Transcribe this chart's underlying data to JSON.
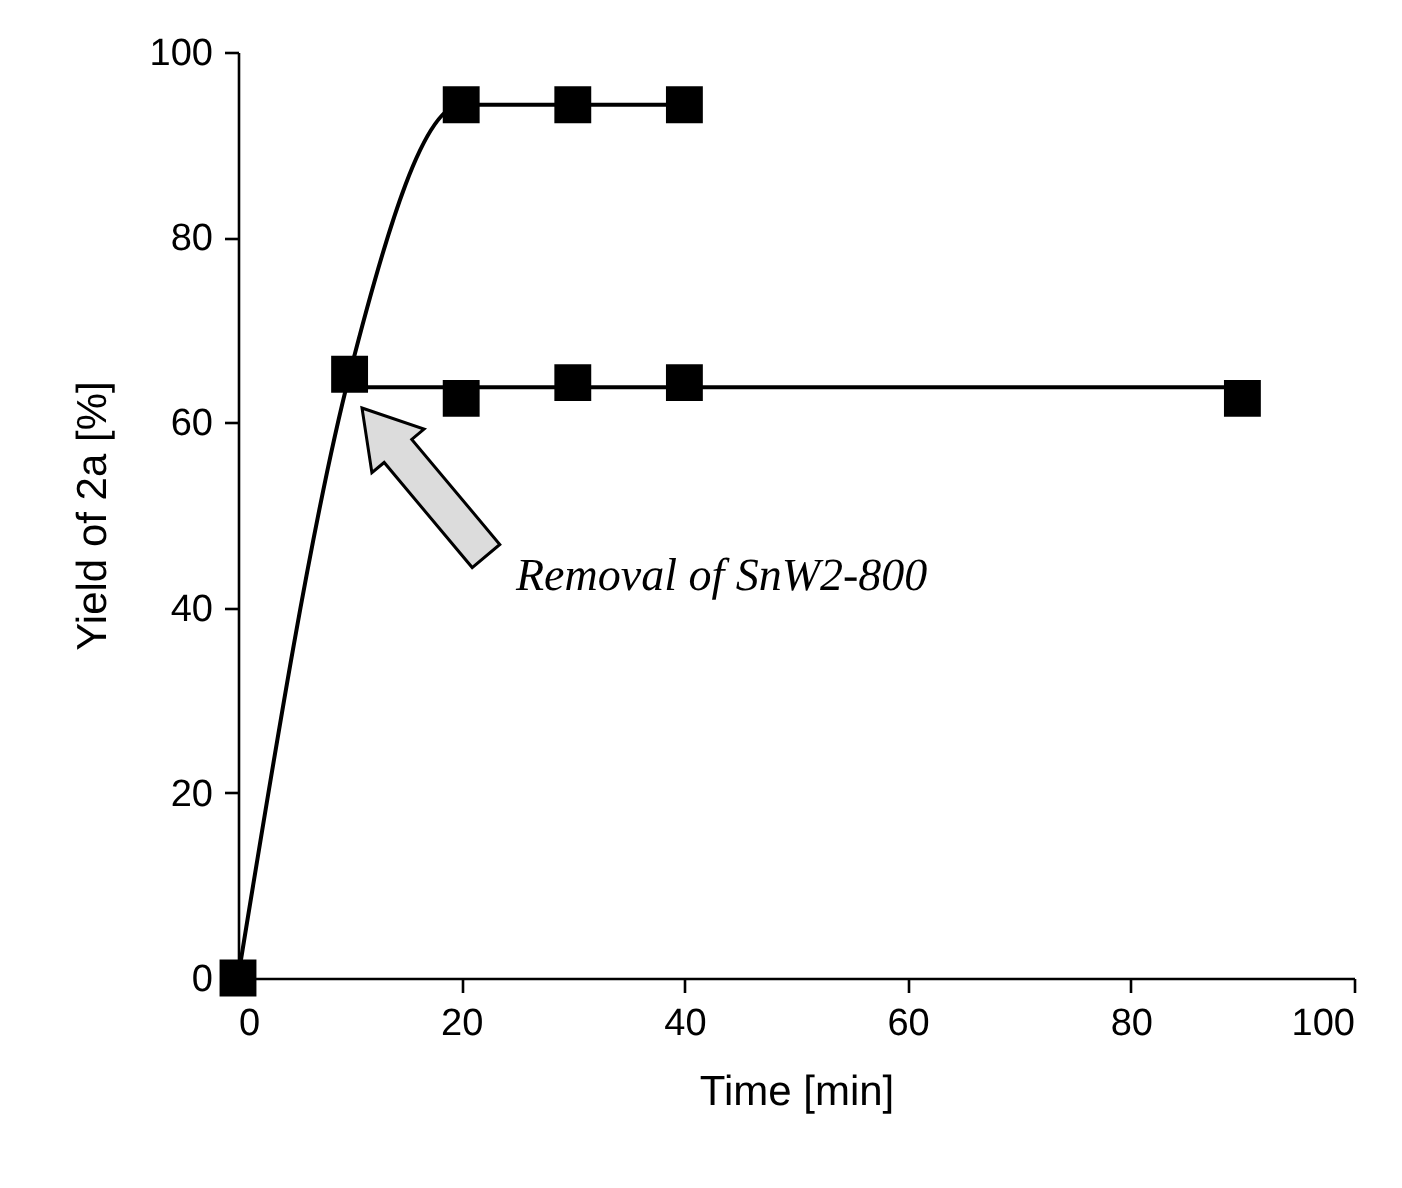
{
  "chart_data": {
    "type": "line",
    "xlabel": "Time [min]",
    "ylabel": "Yield of 2a [%]",
    "xlim": [
      0,
      100
    ],
    "xticks": [
      0,
      20,
      40,
      60,
      80,
      100
    ],
    "ylim": [
      0,
      100
    ],
    "yticks": [
      0,
      20,
      40,
      60,
      80,
      100
    ],
    "series": [
      {
        "type": "line",
        "marker": "square",
        "color": "#000000",
        "x": [
          0,
          10,
          20,
          30,
          40
        ],
        "values": [
          0,
          65.2,
          94.3,
          94.3,
          94.3
        ]
      },
      {
        "type": "scatter",
        "marker": "square",
        "color": "#000000",
        "x": [
          20,
          30,
          40,
          90
        ],
        "values": [
          62.6,
          64.3,
          64.3,
          62.6
        ]
      },
      {
        "type": "line",
        "marker": "none",
        "color": "#000000",
        "x": [
          10,
          90
        ],
        "values": [
          63.8,
          63.8
        ]
      }
    ],
    "annotations": [
      "Removal of SnW2-800"
    ]
  }
}
